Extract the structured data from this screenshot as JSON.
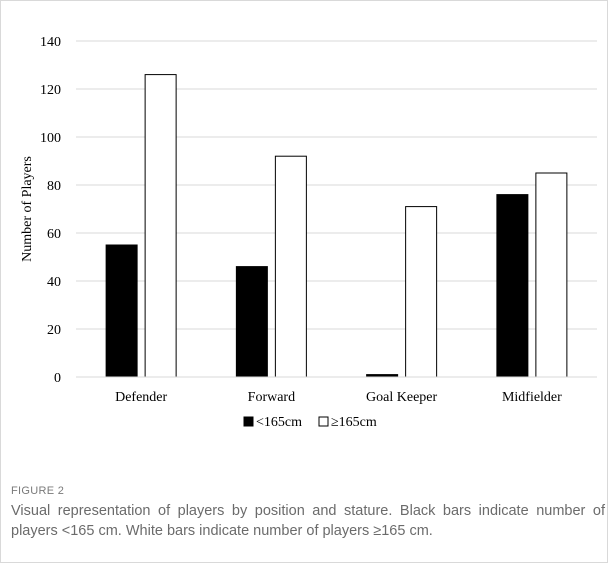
{
  "chart_data": {
    "type": "bar",
    "title": "",
    "xlabel": "",
    "ylabel": "Number of Players",
    "ylim": [
      0,
      140
    ],
    "yticks": [
      0,
      20,
      40,
      60,
      80,
      100,
      120,
      140
    ],
    "grid": true,
    "legend_position": "bottom",
    "categories": [
      "Defender",
      "Forward",
      "Goal Keeper",
      "Midfielder"
    ],
    "series": [
      {
        "name": "<165cm",
        "values": [
          55,
          46,
          1,
          76
        ],
        "color": "#000000"
      },
      {
        "name": "≥165cm",
        "values": [
          126,
          92,
          71,
          85
        ],
        "color": "#ffffff"
      }
    ]
  },
  "caption": {
    "label": "FIGURE 2",
    "text": "Visual representation of players by position and stature. Black bars indicate number of players <165 cm. White bars indicate number of players ≥165 cm."
  },
  "colors": {
    "gridline": "#d9d9d9",
    "bar_outline": "#000000",
    "caption_text": "#6b6b6b"
  }
}
